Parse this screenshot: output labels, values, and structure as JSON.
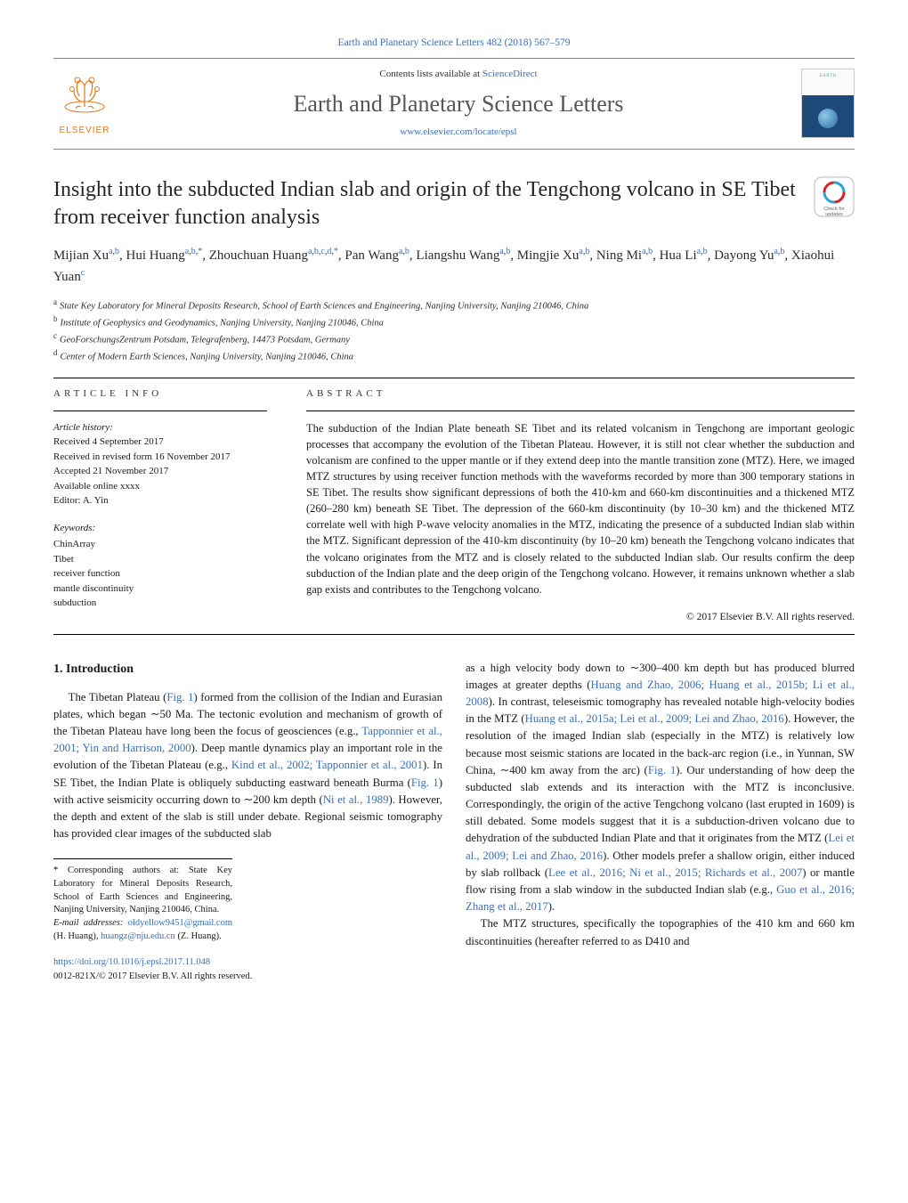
{
  "header": {
    "citation_link": "Earth and Planetary Science Letters 482 (2018) 567–579",
    "contents_prefix": "Contents lists available at ",
    "contents_link": "ScienceDirect",
    "journal": "Earth and Planetary Science Letters",
    "homepage": "www.elsevier.com/locate/epsl",
    "elsevier_label": "ELSEVIER"
  },
  "title": "Insight into the subducted Indian slab and origin of the Tengchong volcano in SE Tibet from receiver function analysis",
  "authors_html": "Mijian Xu",
  "authors": [
    {
      "name": "Mijian Xu",
      "sup": "a,b"
    },
    {
      "name": "Hui Huang",
      "sup": "a,b,*"
    },
    {
      "name": "Zhouchuan Huang",
      "sup": "a,b,c,d,*"
    },
    {
      "name": "Pan Wang",
      "sup": "a,b"
    },
    {
      "name": "Liangshu Wang",
      "sup": "a,b"
    },
    {
      "name": "Mingjie Xu",
      "sup": "a,b"
    },
    {
      "name": "Ning Mi",
      "sup": "a,b"
    },
    {
      "name": "Hua Li",
      "sup": "a,b"
    },
    {
      "name": "Dayong Yu",
      "sup": "a,b"
    },
    {
      "name": "Xiaohui Yuan",
      "sup": "c"
    }
  ],
  "affiliations": [
    {
      "key": "a",
      "text": "State Key Laboratory for Mineral Deposits Research, School of Earth Sciences and Engineering, Nanjing University, Nanjing 210046, China"
    },
    {
      "key": "b",
      "text": "Institute of Geophysics and Geodynamics, Nanjing University, Nanjing 210046, China"
    },
    {
      "key": "c",
      "text": "GeoForschungsZentrum Potsdam, Telegrafenberg, 14473 Potsdam, Germany"
    },
    {
      "key": "d",
      "text": "Center of Modern Earth Sciences, Nanjing University, Nanjing 210046, China"
    }
  ],
  "article_info_label": "article info",
  "abstract_label": "abstract",
  "history": {
    "heading": "Article history:",
    "received": "Received 4 September 2017",
    "revised": "Received in revised form 16 November 2017",
    "accepted": "Accepted 21 November 2017",
    "online": "Available online xxxx",
    "editor": "Editor: A. Yin"
  },
  "keywords": {
    "heading": "Keywords:",
    "items": [
      "ChinArray",
      "Tibet",
      "receiver function",
      "mantle discontinuity",
      "subduction"
    ]
  },
  "abstract": "The subduction of the Indian Plate beneath SE Tibet and its related volcanism in Tengchong are important geologic processes that accompany the evolution of the Tibetan Plateau. However, it is still not clear whether the subduction and volcanism are confined to the upper mantle or if they extend deep into the mantle transition zone (MTZ). Here, we imaged MTZ structures by using receiver function methods with the waveforms recorded by more than 300 temporary stations in SE Tibet. The results show significant depressions of both the 410-km and 660-km discontinuities and a thickened MTZ (260–280 km) beneath SE Tibet. The depression of the 660-km discontinuity (by 10–30 km) and the thickened MTZ correlate well with high P-wave velocity anomalies in the MTZ, indicating the presence of a subducted Indian slab within the MTZ. Significant depression of the 410-km discontinuity (by 10–20 km) beneath the Tengchong volcano indicates that the volcano originates from the MTZ and is closely related to the subducted Indian slab. Our results confirm the deep subduction of the Indian plate and the deep origin of the Tengchong volcano. However, it remains unknown whether a slab gap exists and contributes to the Tengchong volcano.",
  "copyright": "© 2017 Elsevier B.V. All rights reserved.",
  "intro_heading": "1. Introduction",
  "intro_col1": "The Tibetan Plateau (Fig. 1) formed from the collision of the Indian and Eurasian plates, which began ∼50 Ma. The tectonic evolution and mechanism of growth of the Tibetan Plateau have long been the focus of geosciences (e.g., Tapponnier et al., 2001; Yin and Harrison, 2000). Deep mantle dynamics play an important role in the evolution of the Tibetan Plateau (e.g., Kind et al., 2002; Tapponnier et al., 2001). In SE Tibet, the Indian Plate is obliquely subducting eastward beneath Burma (Fig. 1) with active seismicity occurring down to ∼200 km depth (Ni et al., 1989). However, the depth and extent of the slab is still under debate. Regional seismic tomography has provided clear images of the subducted slab",
  "intro_col2": "as a high velocity body down to ∼300–400 km depth but has produced blurred images at greater depths (Huang and Zhao, 2006; Huang et al., 2015b; Li et al., 2008). In contrast, teleseismic tomography has revealed notable high-velocity bodies in the MTZ (Huang et al., 2015a; Lei et al., 2009; Lei and Zhao, 2016). However, the resolution of the imaged Indian slab (especially in the MTZ) is relatively low because most seismic stations are located in the back-arc region (i.e., in Yunnan, SW China, ∼400 km away from the arc) (Fig. 1). Our understanding of how deep the subducted slab extends and its interaction with the MTZ is inconclusive. Correspondingly, the origin of the active Tengchong volcano (last erupted in 1609) is still debated. Some models suggest that it is a subduction-driven volcano due to dehydration of the subducted Indian Plate and that it originates from the MTZ (Lei et al., 2009; Lei and Zhao, 2016). Other models prefer a shallow origin, either induced by slab rollback (Lee et al., 2016; Ni et al., 2015; Richards et al., 2007) or mantle flow rising from a slab window in the subducted Indian slab (e.g., Guo et al., 2016; Zhang et al., 2017).",
  "intro_col2_p2": "The MTZ structures, specifically the topographies of the 410 km and 660 km discontinuities (hereafter referred to as D410 and",
  "footnotes": {
    "corresponding": "Corresponding authors at: State Key Laboratory for Mineral Deposits Research, School of Earth Sciences and Engineering, Nanjing University, Nanjing 210046, China.",
    "emails_label": "E-mail addresses:",
    "email1": "oldyellow9451@gmail.com",
    "email1_name": " (H. Huang), ",
    "email2": "huangz@nju.edu.cn",
    "email2_name": " (Z. Huang)."
  },
  "doi": "https://doi.org/10.1016/j.epsl.2017.11.048",
  "issn_line": "0012-821X/© 2017 Elsevier B.V. All rights reserved.",
  "colors": {
    "link": "#3a6fb7",
    "elsevier_orange": "#e67817",
    "text": "#1a1a1a",
    "rule": "#000000"
  }
}
